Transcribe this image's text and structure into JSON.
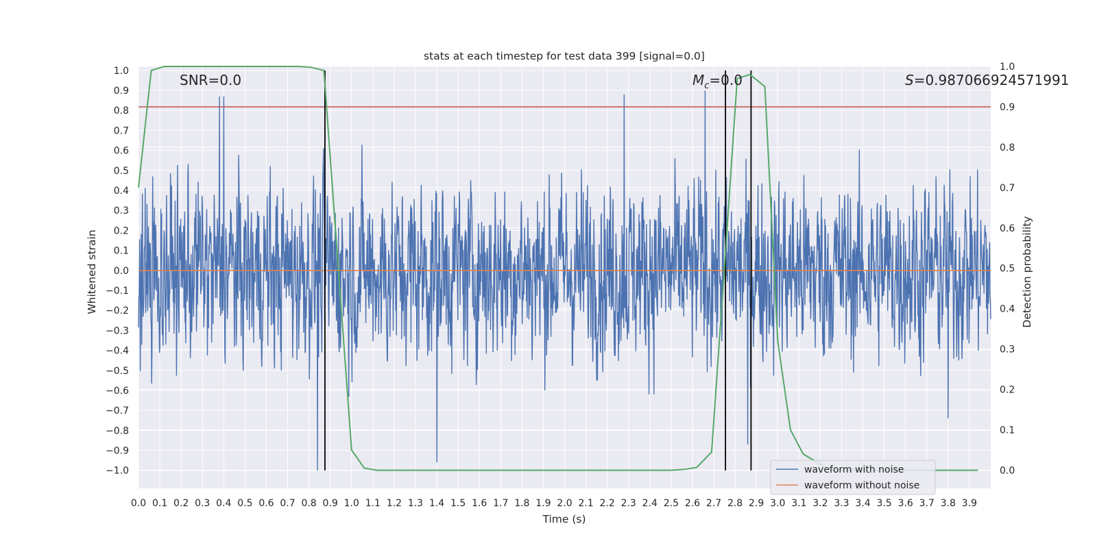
{
  "chart_data": {
    "type": "line",
    "title": "stats at each timestep for test data 399 [signal=0.0]",
    "xlabel": "Time (s)",
    "ylabel": "Whitened strain",
    "ylabel_right": "Detection probability",
    "xlim": [
      0.0,
      4.0
    ],
    "ylim": [
      -1.09,
      1.02
    ],
    "ylim_right": [
      -0.045,
      1.0
    ],
    "x_ticks": [
      "0.0",
      "0.1",
      "0.2",
      "0.3",
      "0.4",
      "0.5",
      "0.6",
      "0.7",
      "0.8",
      "0.9",
      "1.0",
      "1.1",
      "1.2",
      "1.3",
      "1.4",
      "1.5",
      "1.6",
      "1.7",
      "1.8",
      "1.9",
      "2.0",
      "2.1",
      "2.2",
      "2.3",
      "2.4",
      "2.5",
      "2.6",
      "2.7",
      "2.8",
      "2.9",
      "3.0",
      "3.1",
      "3.2",
      "3.3",
      "3.4",
      "3.5",
      "3.6",
      "3.7",
      "3.8",
      "3.9"
    ],
    "y_ticks": [
      "1.0",
      "0.9",
      "0.8",
      "0.7",
      "0.6",
      "0.5",
      "0.4",
      "0.3",
      "0.2",
      "0.1",
      "0.0",
      "−0.1",
      "−0.2",
      "−0.3",
      "−0.4",
      "−0.5",
      "−0.6",
      "−0.7",
      "−0.8",
      "−0.9",
      "−1.0"
    ],
    "y_ticks_right": [
      "1.0",
      "0.9",
      "0.8",
      "0.7",
      "0.6",
      "0.5",
      "0.4",
      "0.3",
      "0.2",
      "0.1",
      "0.0"
    ],
    "series": [
      {
        "name": "waveform with noise",
        "color": "#4c72b0",
        "style": "dense noise trace",
        "peak_samples": [
          {
            "x": 0.38,
            "y": 0.87
          },
          {
            "x": 0.4,
            "y": 0.87
          },
          {
            "x": 0.84,
            "y": -1.0
          },
          {
            "x": 1.4,
            "y": -0.96
          },
          {
            "x": 2.28,
            "y": 0.88
          },
          {
            "x": 2.66,
            "y": 0.9
          },
          {
            "x": 2.86,
            "y": -0.87
          },
          {
            "x": 3.8,
            "y": -0.74
          }
        ]
      },
      {
        "name": "waveform without noise",
        "color": "#dd8452",
        "x": [
          0.0,
          4.0
        ],
        "values": [
          0.0,
          0.0
        ]
      },
      {
        "name": "detection probability",
        "color": "#55a868",
        "axis": "right",
        "x": [
          0.0,
          0.06,
          0.12,
          0.25,
          0.5,
          0.75,
          0.81,
          0.87,
          1.0,
          1.06,
          1.12,
          1.5,
          2.0,
          2.5,
          2.56,
          2.62,
          2.69,
          2.75,
          2.81,
          2.87,
          2.94,
          3.0,
          3.06,
          3.12,
          3.25,
          3.5,
          3.75,
          3.94
        ],
        "values": [
          0.7,
          0.99,
          1.0,
          1.0,
          1.0,
          1.0,
          0.998,
          0.99,
          0.05,
          0.005,
          0.0,
          0.0,
          0.0,
          0.0,
          0.002,
          0.007,
          0.045,
          0.5,
          0.97,
          0.98,
          0.95,
          0.32,
          0.1,
          0.04,
          0.0,
          0.0,
          0.0,
          0.0
        ]
      }
    ],
    "threshold_right": {
      "value": 0.9,
      "color": "#c44e52"
    },
    "vertical_markers": [
      0.875,
      2.755,
      2.875
    ],
    "annotations": {
      "snr": "SNR=0.0",
      "mc_symbol": "M",
      "mc_subscript": "c",
      "mc_value": "=0.0",
      "s_symbol": "S",
      "s_value": "=0.987066924571991"
    },
    "legend": {
      "location": "lower right",
      "entries": [
        {
          "label": "waveform with noise",
          "color": "#4c72b0"
        },
        {
          "label": "waveform without noise",
          "color": "#dd8452"
        }
      ]
    }
  }
}
